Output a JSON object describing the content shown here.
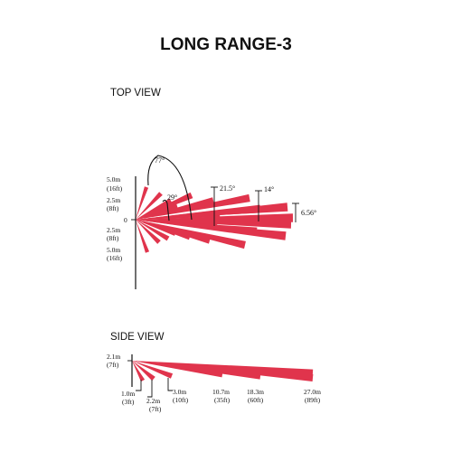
{
  "title": "LONG RANGE-3",
  "top_view": {
    "heading": "TOP VIEW",
    "zero_label": "0",
    "y_labels": [
      {
        "m": "5.0m",
        "ft": "(16ft)"
      },
      {
        "m": "2.5m",
        "ft": "(8ft)"
      },
      {
        "m": "2.5m",
        "ft": "(8ft)"
      },
      {
        "m": "5.0m",
        "ft": "(16ft)"
      }
    ],
    "angles": [
      "77°",
      "29°",
      "21.5°",
      "14°",
      "6.56°"
    ]
  },
  "side_view": {
    "heading": "SIDE VIEW",
    "height_label": {
      "m": "2.1m",
      "ft": "(7ft)"
    },
    "distance_labels": [
      {
        "m": "1.0m",
        "ft": "(3ft)"
      },
      {
        "m": "2.2m",
        "ft": "(7ft)"
      },
      {
        "m": "3.0m",
        "ft": "(10ft)"
      },
      {
        "m": "10.7m",
        "ft": "(35ft)"
      },
      {
        "m": "18.3m",
        "ft": "(60ft)"
      },
      {
        "m": "27.0m",
        "ft": "(89ft)"
      }
    ]
  },
  "colors": {
    "beam": "#e0344c",
    "ink": "#111111"
  }
}
